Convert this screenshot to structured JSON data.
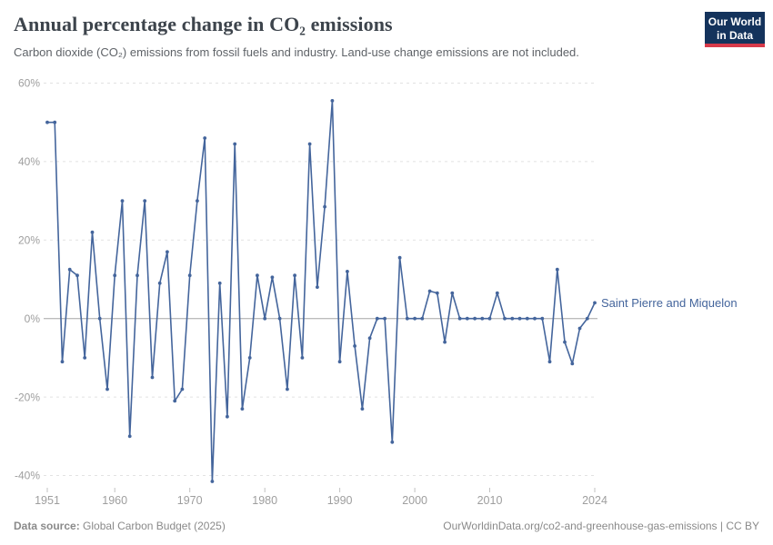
{
  "header": {
    "title": "Annual percentage change in CO₂ emissions",
    "subtitle": "Carbon dioxide (CO₂) emissions from fossil fuels and industry. Land-use change emissions are not included.",
    "logo": {
      "line1": "Our World",
      "line2": "in Data",
      "bg_color": "#14335c",
      "stripe_color": "#d73a4a"
    }
  },
  "chart_data": {
    "type": "line",
    "title": "Annual percentage change in CO₂ emissions",
    "xlabel": "",
    "ylabel": "",
    "x": [
      1951,
      1952,
      1953,
      1954,
      1955,
      1956,
      1957,
      1958,
      1959,
      1960,
      1961,
      1962,
      1963,
      1964,
      1965,
      1966,
      1967,
      1968,
      1969,
      1970,
      1971,
      1972,
      1973,
      1974,
      1975,
      1976,
      1977,
      1978,
      1979,
      1980,
      1981,
      1982,
      1983,
      1984,
      1985,
      1986,
      1987,
      1988,
      1989,
      1990,
      1991,
      1992,
      1993,
      1994,
      1995,
      1996,
      1997,
      1998,
      1999,
      2000,
      2001,
      2002,
      2003,
      2004,
      2005,
      2006,
      2007,
      2008,
      2009,
      2010,
      2011,
      2012,
      2013,
      2014,
      2015,
      2016,
      2017,
      2018,
      2019,
      2020,
      2021,
      2022,
      2023,
      2024
    ],
    "series": [
      {
        "name": "Saint Pierre and Miquelon",
        "color": "#44659c",
        "values": [
          50,
          50,
          -11,
          12.5,
          11,
          -10,
          22,
          0,
          -18,
          11,
          30,
          -30,
          11,
          30,
          -15,
          9,
          17,
          -21,
          -18,
          11,
          30,
          46,
          -41.5,
          9,
          -25,
          44.5,
          -23,
          -10,
          11,
          0,
          10.5,
          0,
          -18,
          11,
          -10,
          44.5,
          8,
          28.5,
          55.5,
          -11,
          12,
          -7,
          -23,
          -5,
          0,
          0,
          -31.5,
          15.5,
          0,
          0,
          0,
          7,
          6.5,
          -6,
          6.5,
          0,
          0,
          0,
          0,
          0,
          6.5,
          0,
          0,
          0,
          0,
          0,
          0,
          -11,
          12.5,
          -6,
          -11.5,
          -2.5,
          0,
          4
        ]
      }
    ],
    "x_ticks": [
      1951,
      1960,
      1970,
      1980,
      1990,
      2000,
      2010,
      2024
    ],
    "y_ticks": [
      60,
      40,
      20,
      0,
      -20,
      -40
    ],
    "y_tick_suffix": "%",
    "xlim": [
      1951,
      2024
    ],
    "ylim": [
      -44,
      62
    ],
    "grid": "horizontal dashed gridlines, solid zero line",
    "legend_position": "label at end of line"
  },
  "footer": {
    "source_label": "Data source:",
    "source_value": "Global Carbon Budget (2025)",
    "credit": "OurWorldinData.org/co2-and-greenhouse-gas-emissions | CC BY"
  }
}
